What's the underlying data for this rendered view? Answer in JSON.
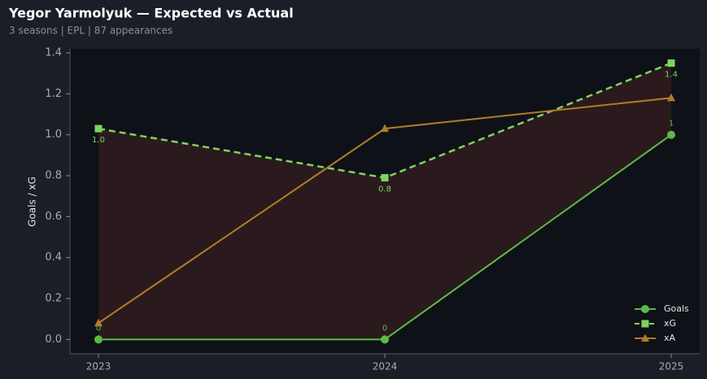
{
  "chart_data": {
    "type": "line",
    "title": "Yegor Yarmolyuk — Expected vs Actual",
    "subtitle": "3 seasons | EPL | 87 appearances",
    "y_label": "Goals / xG",
    "categories": [
      "2023",
      "2024",
      "2025"
    ],
    "series": [
      {
        "name": "Goals",
        "color": "#5cba47",
        "marker": "circle",
        "dashed": false,
        "values": [
          0,
          0,
          1
        ]
      },
      {
        "name": "xG",
        "color": "#7fd35e",
        "marker": "square",
        "dashed": true,
        "values": [
          1.03,
          0.79,
          1.35
        ],
        "value_labels": [
          "1.0",
          "0.8",
          "1.4"
        ]
      },
      {
        "name": "xA",
        "color": "#b07d28",
        "marker": "triangle",
        "dashed": false,
        "values": [
          0.08,
          1.03,
          1.18
        ]
      }
    ],
    "fill_between": {
      "from": "xG",
      "to": "Goals",
      "color": "#2e1c1e"
    },
    "ylim": [
      -0.07,
      1.42
    ],
    "yticks": [
      {
        "value": 0,
        "label": "0.0"
      },
      0.2,
      0.4,
      0.6,
      0.8,
      {
        "value": 1,
        "label": "1.0"
      },
      1.2,
      1.4
    ],
    "legend": "lower right"
  }
}
